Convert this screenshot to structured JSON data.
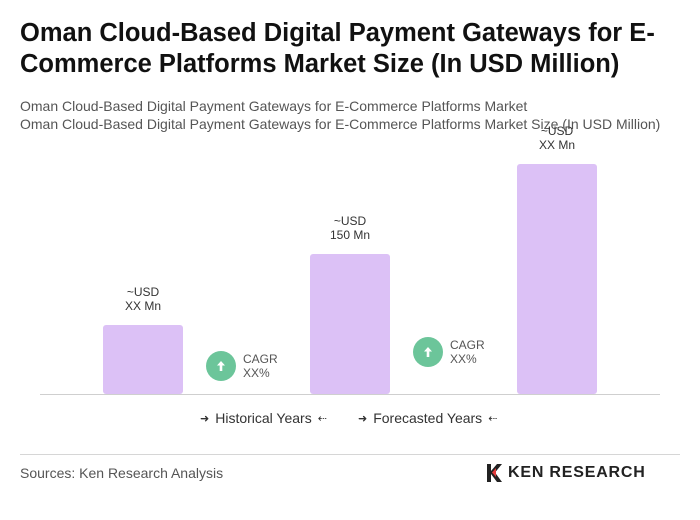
{
  "title": "Oman Cloud-Based Digital Payment Gateways for E-Commerce Platforms Market Size (In USD Million)",
  "subtitle_1": "Oman Cloud-Based Digital Payment Gateways for E-Commerce Platforms Market",
  "subtitle_2": "Oman Cloud-Based Digital Payment Gateways for E-Commerce Platforms Market Size (In USD Million)",
  "colors": {
    "bar": "#dcc1f6",
    "cagr_circle": "#6cc59a",
    "axis": "#cfcfcf"
  },
  "chart_data": {
    "type": "bar",
    "bars": [
      {
        "label_line1": "~USD",
        "label_line2": "XX Mn",
        "relative_height": 0.3
      },
      {
        "label_line1": "~USD",
        "label_line2": "150 Mn",
        "relative_height": 0.61
      },
      {
        "label_line1": "~USD",
        "label_line2": "XX Mn",
        "relative_height": 1.0
      }
    ],
    "cagr": [
      {
        "line1": "CAGR",
        "line2": "XX%",
        "icon": "arrow-up-icon"
      },
      {
        "line1": "CAGR",
        "line2": "XX%",
        "icon": "arrow-up-icon"
      }
    ]
  },
  "legend": {
    "historical": "Historical Years",
    "forecasted": "Forecasted Years"
  },
  "source": "Sources: Ken Research Analysis",
  "logo_text": "KEN RESEARCH"
}
